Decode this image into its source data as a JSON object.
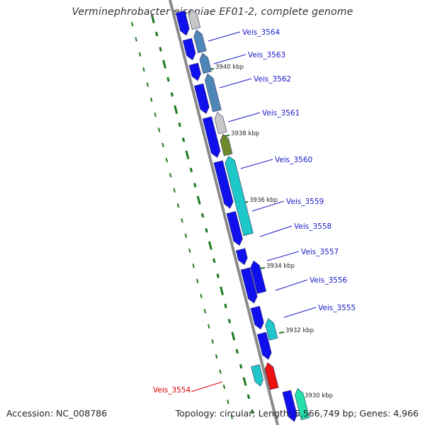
{
  "title": "Verminephrobacter eiseniae EF01-2, complete genome",
  "accession": "Accession: NC_008786",
  "summary": "Topology: circular; Length: 5,566,749 bp; Genes: 4,966",
  "colors": {
    "backbone": "#8a8a8a",
    "gene_blue": "#1010ee",
    "label_blue": "#1a1ac8",
    "label_red": "#dd0000",
    "tick_green": "#1d7a1d",
    "steel": "#4f86b8",
    "olive": "#6f8a2a",
    "cyan": "#1ec8c8",
    "red": "#ee1111",
    "light_grey": "#c8c8c8",
    "green_cyan": "#22e0a8"
  },
  "scale_ticks": [
    {
      "kbp": 3940,
      "label": "3940 kbp"
    },
    {
      "kbp": 3938,
      "label": "3938 kbp"
    },
    {
      "kbp": 3936,
      "label": "3936 kbp"
    },
    {
      "kbp": 3934,
      "label": "3934 kbp"
    },
    {
      "kbp": 3932,
      "label": "3932 kbp"
    },
    {
      "kbp": 3930,
      "label": "3930 kbp"
    }
  ],
  "gene_labels": [
    {
      "name": "Veis_3564",
      "highlight": false
    },
    {
      "name": "Veis_3563",
      "highlight": false
    },
    {
      "name": "Veis_3562",
      "highlight": false
    },
    {
      "name": "Veis_3561",
      "highlight": false
    },
    {
      "name": "Veis_3560",
      "highlight": false
    },
    {
      "name": "Veis_3559",
      "highlight": false
    },
    {
      "name": "Veis_3558",
      "highlight": false
    },
    {
      "name": "Veis_3557",
      "highlight": false
    },
    {
      "name": "Veis_3556",
      "highlight": false
    },
    {
      "name": "Veis_3555",
      "highlight": false
    },
    {
      "name": "Veis_3554",
      "highlight": true
    }
  ]
}
